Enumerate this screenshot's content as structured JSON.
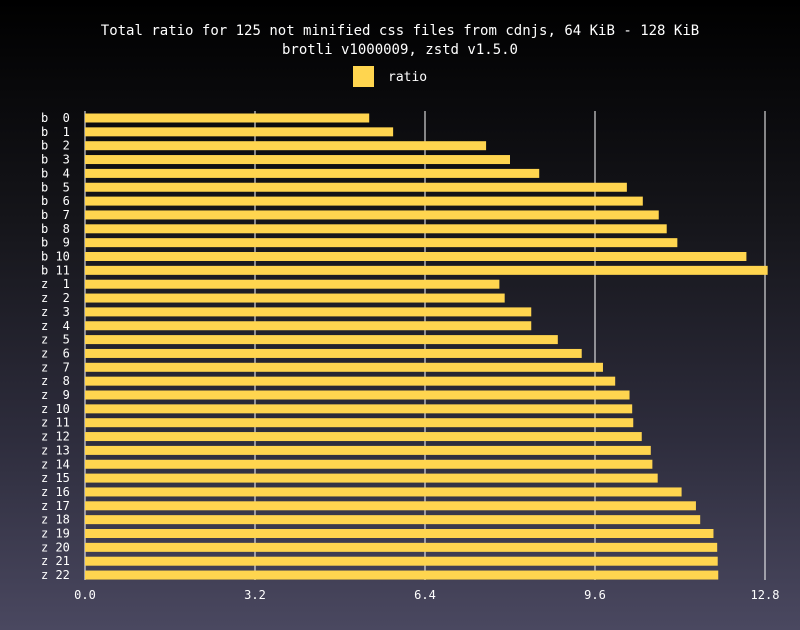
{
  "chart_data": {
    "type": "bar",
    "orientation": "horizontal",
    "title": "Total ratio for 125 not minified css files from cdnjs, 64 KiB - 128 KiB",
    "subtitle": "brotli v1000009, zstd v1.5.0",
    "legend": {
      "entries": [
        "ratio"
      ],
      "placement": "top-center"
    },
    "categories": [
      "b  0",
      "b  1",
      "b  2",
      "b  3",
      "b  4",
      "b  5",
      "b  6",
      "b  7",
      "b  8",
      "b  9",
      "b 10",
      "b 11",
      "z  1",
      "z  2",
      "z  3",
      "z  4",
      "z  5",
      "z  6",
      "z  7",
      "z  8",
      "z  9",
      "z 10",
      "z 11",
      "z 12",
      "z 13",
      "z 14",
      "z 15",
      "z 16",
      "z 17",
      "z 18",
      "z 19",
      "z 20",
      "z 21",
      "z 22"
    ],
    "series": [
      {
        "name": "ratio",
        "color": "#ffd54f",
        "values": [
          5.35,
          5.8,
          7.55,
          8.0,
          8.55,
          10.2,
          10.5,
          10.8,
          10.95,
          11.15,
          12.45,
          12.85,
          7.8,
          7.9,
          8.4,
          8.4,
          8.9,
          9.35,
          9.75,
          9.98,
          10.25,
          10.3,
          10.32,
          10.48,
          10.65,
          10.68,
          10.78,
          11.23,
          11.5,
          11.58,
          11.83,
          11.9,
          11.91,
          11.92
        ]
      }
    ],
    "xlim": [
      0,
      12.8
    ],
    "xticks": [
      "0.0",
      "3.2",
      "6.4",
      "9.6",
      "12.8"
    ],
    "grid": "vertical lines"
  }
}
